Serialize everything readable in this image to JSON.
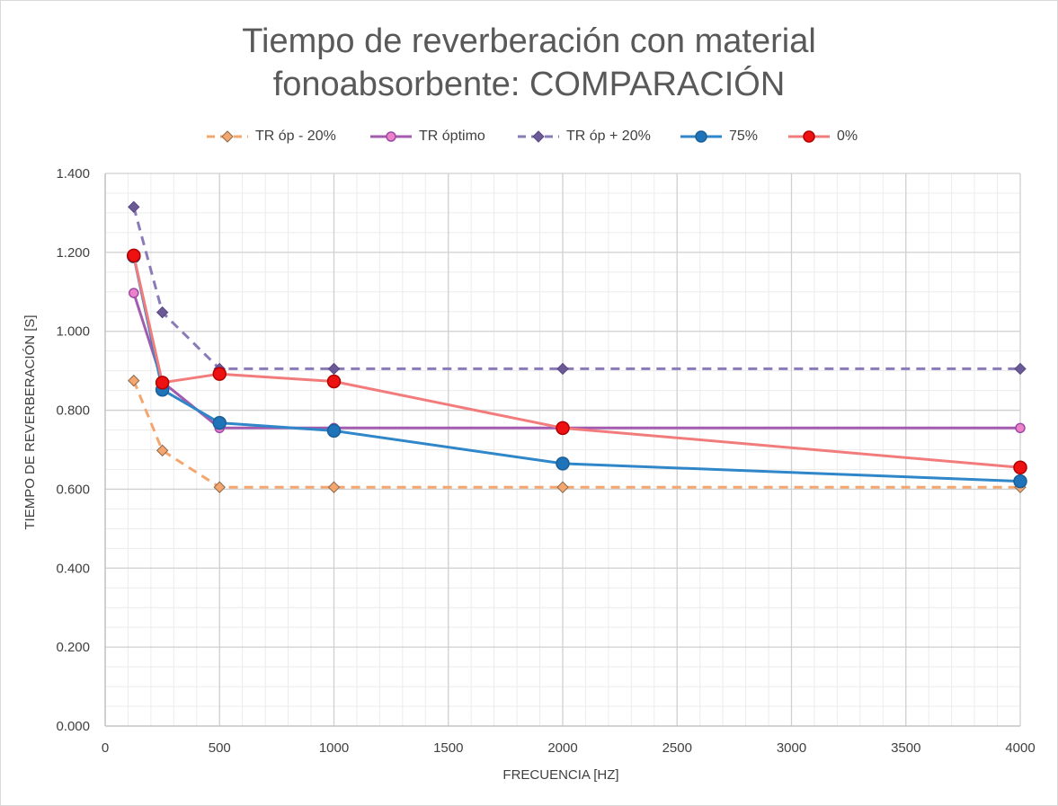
{
  "chart_data": {
    "type": "line",
    "title_lines": [
      "Tiempo de reverberación con material",
      "fonoabsorbente: COMPARACIÓN"
    ],
    "xlabel": "FRECUENCIA [HZ]",
    "ylabel": "TIEMPO DE REVERBERACIÓN [S]",
    "xlim": [
      0,
      4000
    ],
    "ylim": [
      0,
      1.4
    ],
    "x_ticks": [
      0,
      500,
      1000,
      1500,
      2000,
      2500,
      3000,
      3500,
      4000
    ],
    "x_tick_labels": [
      "0",
      "500",
      "1000",
      "1500",
      "2000",
      "2500",
      "3000",
      "3500",
      "4000"
    ],
    "y_ticks": [
      0,
      0.2,
      0.4,
      0.6,
      0.8,
      1.0,
      1.2,
      1.4
    ],
    "y_tick_labels": [
      "0.000",
      "0.200",
      "0.400",
      "0.600",
      "0.800",
      "1.000",
      "1.200",
      "1.400"
    ],
    "x_minor_step": 100,
    "y_minor_step": 0.05,
    "grid": true,
    "legend_position": "top",
    "x": [
      125,
      250,
      500,
      1000,
      2000,
      4000
    ],
    "series": [
      {
        "name": "TR óp - 20%",
        "values": [
          0.875,
          0.698,
          0.605,
          0.605,
          0.605,
          0.605
        ],
        "color": "#f4a66e",
        "marker_color": "#f4a66e",
        "marker_edge": "#8a6a4e",
        "marker": "diamond",
        "dash": true
      },
      {
        "name": "TR óptimo",
        "values": [
          1.097,
          0.872,
          0.755,
          0.755,
          0.755,
          0.755
        ],
        "color": "#a35bb0",
        "marker_color": "#ee82c8",
        "marker_edge": "#9b4aa8",
        "marker": "circle",
        "dash": false
      },
      {
        "name": "TR óp + 20%",
        "values": [
          1.315,
          1.048,
          0.905,
          0.905,
          0.905,
          0.905
        ],
        "color": "#8a7ab8",
        "marker_color": "#6b5a96",
        "marker_edge": "#574883",
        "marker": "diamond",
        "dash": true
      },
      {
        "name": "75%",
        "values": [
          1.19,
          0.852,
          0.768,
          0.748,
          0.665,
          0.62
        ],
        "color": "#2f86c8",
        "marker_color": "#1f73b8",
        "marker_edge": "#1a5f99",
        "marker": "circle",
        "dash": false
      },
      {
        "name": "0%",
        "values": [
          1.192,
          0.87,
          0.892,
          0.873,
          0.755,
          0.655
        ],
        "color": "#f27c7c",
        "marker_color": "#ee1111",
        "marker_edge": "#b00000",
        "marker": "circle",
        "dash": false
      }
    ]
  }
}
